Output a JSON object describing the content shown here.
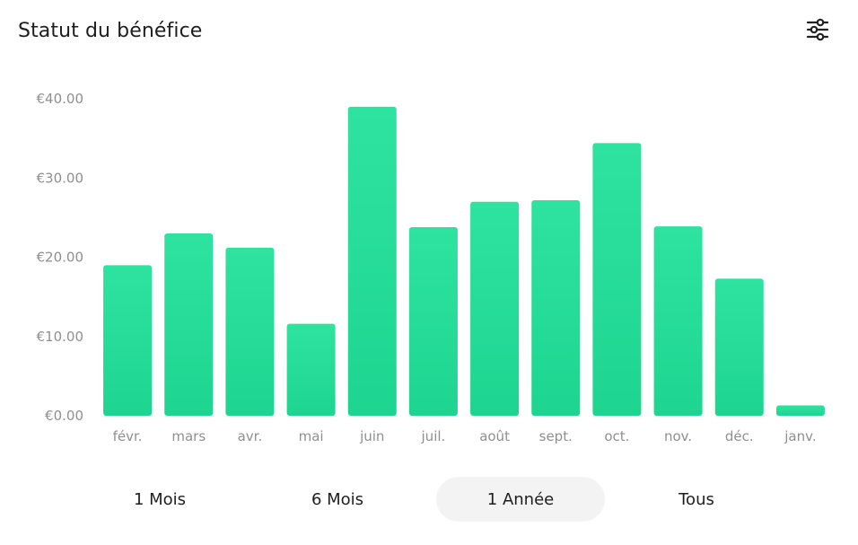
{
  "header": {
    "title": "Statut du bénéfice",
    "filter_icon": "sliders-icon"
  },
  "chart_data": {
    "type": "bar",
    "categories": [
      "févr.",
      "mars",
      "avr.",
      "mai",
      "juin",
      "juil.",
      "août",
      "sept.",
      "oct.",
      "nov.",
      "déc.",
      "janv."
    ],
    "values": [
      19.0,
      23.0,
      21.2,
      11.6,
      39.0,
      23.8,
      27.0,
      27.2,
      34.4,
      23.9,
      17.3,
      1.3
    ],
    "yticks": [
      "€0.00",
      "€10.00",
      "€20.00",
      "€30.00",
      "€40.00"
    ],
    "ytick_values": [
      0,
      10,
      20,
      30,
      40
    ],
    "ylim": [
      0,
      40
    ],
    "grid": false,
    "color": "#2ee3a0",
    "color_bottom": "#1dd590"
  },
  "ranges": {
    "items": [
      {
        "label": "1 Mois",
        "active": false
      },
      {
        "label": "6 Mois",
        "active": false
      },
      {
        "label": "1 Année",
        "active": true
      },
      {
        "label": "Tous",
        "active": false
      }
    ]
  }
}
